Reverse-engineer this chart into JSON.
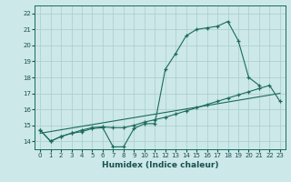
{
  "xlabel": "Humidex (Indice chaleur)",
  "xlim": [
    -0.5,
    23.5
  ],
  "ylim": [
    13.5,
    22.5
  ],
  "yticks": [
    14,
    15,
    16,
    17,
    18,
    19,
    20,
    21,
    22
  ],
  "background_color": "#cce8e8",
  "grid_color": "#aacccc",
  "line_color": "#1a6b5a",
  "line1_x": [
    0,
    1,
    2,
    3,
    4,
    5,
    6,
    7,
    8,
    9,
    10,
    11,
    12,
    13,
    14,
    15,
    16,
    17,
    18,
    19,
    20,
    21
  ],
  "line1_y": [
    14.7,
    14.0,
    14.3,
    14.5,
    14.6,
    14.8,
    14.85,
    13.65,
    13.65,
    14.8,
    15.1,
    15.1,
    18.5,
    19.5,
    20.6,
    21.0,
    21.1,
    21.2,
    21.5,
    20.3,
    18.0,
    17.5
  ],
  "line2_x": [
    0,
    1,
    2,
    3,
    4,
    5,
    6,
    7,
    8,
    9,
    10,
    11,
    12,
    13,
    14,
    15,
    16,
    17,
    18,
    19,
    20,
    21,
    22,
    23
  ],
  "line2_y": [
    14.7,
    14.0,
    14.3,
    14.5,
    14.7,
    14.85,
    14.9,
    14.85,
    14.85,
    15.0,
    15.2,
    15.35,
    15.5,
    15.7,
    15.9,
    16.1,
    16.3,
    16.5,
    16.7,
    16.9,
    17.1,
    17.3,
    17.5,
    16.5
  ],
  "line3_x": [
    0,
    23
  ],
  "line3_y": [
    14.5,
    17.0
  ],
  "xlabel_fontsize": 6.5,
  "xlabel_color": "#1a5050",
  "tick_fontsize": 5,
  "tick_color": "#1a5050"
}
